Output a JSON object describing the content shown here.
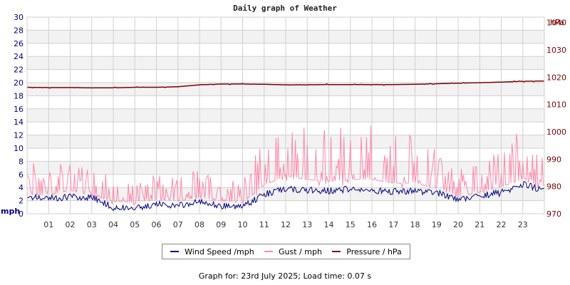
{
  "page": {
    "title": "Daily graph of Weather",
    "footer": "Graph for: 23rd July 2025; Load time: 0.07 s"
  },
  "colors": {
    "wind": "#000080",
    "gust": "#ff88aa",
    "pressure": "#800000",
    "left_axis_text": "#000080",
    "right_axis_text": "#800000",
    "band": "#f2f2f2",
    "grid": "#d0d0d0"
  },
  "legend": {
    "items": [
      {
        "label": "Wind Speed /mph",
        "color": "#000080"
      },
      {
        "label": "Gust / mph",
        "color": "#ff88aa"
      },
      {
        "label": "Pressure / hPa",
        "color": "#800000"
      }
    ]
  },
  "chart_data": {
    "type": "line",
    "title": "Daily graph of Weather",
    "xlabel": "",
    "ylabel": "mph",
    "y2label": "hPa",
    "x_ticks": [
      "01",
      "02",
      "03",
      "04",
      "05",
      "06",
      "07",
      "08",
      "09",
      "10",
      "11",
      "12",
      "13",
      "14",
      "15",
      "16",
      "17",
      "18",
      "19",
      "20",
      "21",
      "22",
      "23"
    ],
    "ylim": [
      0,
      30
    ],
    "y_ticks": [
      0,
      2,
      4,
      6,
      8,
      10,
      12,
      14,
      16,
      18,
      20,
      22,
      24,
      26,
      28,
      30
    ],
    "y2lim": [
      970,
      1042
    ],
    "y2_ticks": [
      970,
      980,
      990,
      1000,
      1010,
      1020,
      1030,
      1040
    ],
    "grid": true,
    "legend_position": "bottom",
    "hours": [
      0,
      1,
      2,
      3,
      4,
      5,
      6,
      7,
      8,
      9,
      10,
      11,
      12,
      13,
      14,
      15,
      16,
      17,
      18,
      19,
      20,
      21,
      22,
      23,
      24
    ],
    "series": [
      {
        "name": "Wind Speed /mph",
        "axis": "left",
        "values": [
          2.5,
          2.3,
          2.6,
          2.5,
          1.0,
          0.8,
          1.5,
          1.2,
          1.8,
          1.2,
          1.0,
          3.0,
          3.8,
          3.6,
          3.5,
          3.8,
          3.6,
          3.4,
          3.5,
          3.2,
          2.2,
          2.8,
          3.2,
          4.5,
          3.6
        ]
      },
      {
        "name": "Gust / mph",
        "axis": "left",
        "values": [
          5.5,
          5.0,
          6.5,
          5.0,
          3.5,
          3.0,
          4.0,
          3.5,
          4.5,
          3.5,
          3.0,
          8.0,
          10.5,
          9.5,
          9.0,
          9.5,
          9.5,
          8.5,
          8.5,
          7.0,
          4.5,
          6.0,
          7.5,
          9.5,
          6.0
        ],
        "max_peak": 14
      },
      {
        "name": "Pressure / hPa",
        "axis": "right",
        "values": [
          1016.3,
          1016.2,
          1016.2,
          1016.1,
          1016.1,
          1016.3,
          1016.3,
          1016.5,
          1017.2,
          1017.5,
          1017.5,
          1017.4,
          1017.2,
          1017.2,
          1017.3,
          1017.3,
          1017.3,
          1017.3,
          1017.4,
          1017.6,
          1017.8,
          1018.0,
          1018.2,
          1018.5,
          1018.6
        ]
      }
    ]
  }
}
